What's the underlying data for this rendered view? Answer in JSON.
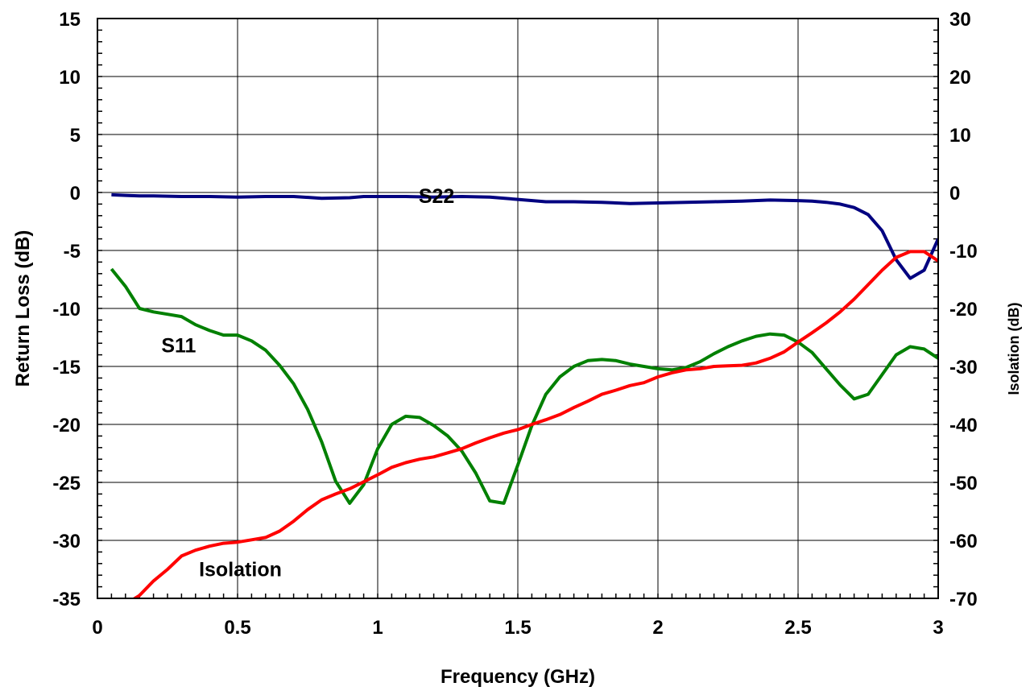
{
  "chart_data": {
    "type": "line",
    "title": "",
    "xlabel": "Frequency (GHz)",
    "ylabel": "Return Loss (dB)",
    "y2label": "Isolation (dB)",
    "xlim": [
      0,
      3
    ],
    "ylim": [
      -35,
      15
    ],
    "y2lim": [
      -70,
      30
    ],
    "xticks": [
      "0",
      "0.5",
      "1",
      "1.5",
      "2",
      "2.5",
      "3"
    ],
    "yticks": [
      "15",
      "10",
      "5",
      "0",
      "-5",
      "-10",
      "-15",
      "-20",
      "-25",
      "-30",
      "-35"
    ],
    "y2ticks": [
      "30",
      "20",
      "10",
      "0",
      "-10",
      "-20",
      "-30",
      "-40",
      "-50",
      "-60",
      "-70"
    ],
    "grid": true,
    "series": [
      {
        "name": "S22",
        "axis": "left",
        "color": "#000080",
        "x": [
          0.05,
          0.1,
          0.15,
          0.2,
          0.3,
          0.4,
          0.5,
          0.6,
          0.7,
          0.8,
          0.9,
          0.95,
          1.0,
          1.1,
          1.2,
          1.3,
          1.4,
          1.5,
          1.6,
          1.7,
          1.8,
          1.9,
          2.0,
          2.1,
          2.2,
          2.3,
          2.4,
          2.5,
          2.55,
          2.6,
          2.65,
          2.7,
          2.75,
          2.8,
          2.85,
          2.9,
          2.95,
          3.0
        ],
        "y": [
          -0.2,
          -0.25,
          -0.3,
          -0.3,
          -0.35,
          -0.35,
          -0.4,
          -0.35,
          -0.35,
          -0.5,
          -0.45,
          -0.35,
          -0.35,
          -0.35,
          -0.4,
          -0.35,
          -0.4,
          -0.6,
          -0.8,
          -0.8,
          -0.85,
          -0.95,
          -0.9,
          -0.85,
          -0.8,
          -0.75,
          -0.65,
          -0.7,
          -0.75,
          -0.85,
          -1.0,
          -1.3,
          -1.9,
          -3.3,
          -5.8,
          -7.4,
          -6.7,
          -4.0
        ]
      },
      {
        "name": "S11",
        "axis": "left",
        "color": "#008000",
        "x": [
          0.05,
          0.1,
          0.15,
          0.2,
          0.25,
          0.3,
          0.35,
          0.4,
          0.45,
          0.5,
          0.55,
          0.6,
          0.65,
          0.7,
          0.75,
          0.8,
          0.85,
          0.9,
          0.95,
          1.0,
          1.05,
          1.1,
          1.15,
          1.2,
          1.25,
          1.3,
          1.35,
          1.4,
          1.45,
          1.5,
          1.55,
          1.6,
          1.65,
          1.7,
          1.75,
          1.8,
          1.85,
          1.9,
          1.95,
          2.0,
          2.05,
          2.1,
          2.15,
          2.2,
          2.25,
          2.3,
          2.35,
          2.4,
          2.45,
          2.5,
          2.55,
          2.6,
          2.65,
          2.7,
          2.75,
          2.8,
          2.85,
          2.9,
          2.95,
          3.0
        ],
        "y": [
          -6.6,
          -8.1,
          -10.0,
          -10.3,
          -10.5,
          -10.7,
          -11.4,
          -11.9,
          -12.3,
          -12.3,
          -12.8,
          -13.6,
          -14.9,
          -16.5,
          -18.7,
          -21.5,
          -24.9,
          -26.8,
          -25.2,
          -22.1,
          -20.0,
          -19.3,
          -19.4,
          -20.1,
          -21.0,
          -22.3,
          -24.2,
          -26.6,
          -26.8,
          -23.5,
          -20.1,
          -17.4,
          -15.9,
          -15.0,
          -14.5,
          -14.4,
          -14.5,
          -14.8,
          -15.0,
          -15.2,
          -15.3,
          -15.1,
          -14.6,
          -13.9,
          -13.3,
          -12.8,
          -12.4,
          -12.2,
          -12.3,
          -12.9,
          -13.8,
          -15.2,
          -16.6,
          -17.8,
          -17.4,
          -15.7,
          -14.0,
          -13.3,
          -13.5,
          -14.3
        ]
      },
      {
        "name": "Isolation",
        "axis": "right",
        "color": "#ff0000",
        "x": [
          0.05,
          0.1,
          0.15,
          0.2,
          0.25,
          0.3,
          0.35,
          0.4,
          0.45,
          0.5,
          0.55,
          0.6,
          0.65,
          0.7,
          0.75,
          0.8,
          0.85,
          0.9,
          0.95,
          1.0,
          1.05,
          1.1,
          1.15,
          1.2,
          1.25,
          1.3,
          1.35,
          1.4,
          1.45,
          1.5,
          1.55,
          1.6,
          1.65,
          1.7,
          1.75,
          1.8,
          1.85,
          1.9,
          1.95,
          2.0,
          2.05,
          2.1,
          2.15,
          2.2,
          2.25,
          2.3,
          2.35,
          2.4,
          2.45,
          2.5,
          2.55,
          2.6,
          2.65,
          2.7,
          2.75,
          2.8,
          2.85,
          2.9,
          2.95,
          3.0
        ],
        "y": [
          -71.8,
          -71.0,
          -69.5,
          -67.0,
          -65.0,
          -62.7,
          -61.7,
          -61.0,
          -60.5,
          -60.3,
          -59.9,
          -59.5,
          -58.4,
          -56.7,
          -54.7,
          -53.0,
          -52.0,
          -51.1,
          -49.9,
          -48.7,
          -47.4,
          -46.6,
          -46.0,
          -45.6,
          -44.9,
          -44.2,
          -43.2,
          -42.3,
          -41.5,
          -40.9,
          -40.0,
          -39.2,
          -38.3,
          -37.1,
          -36.0,
          -34.8,
          -34.1,
          -33.3,
          -32.8,
          -31.8,
          -31.1,
          -30.6,
          -30.4,
          -30.0,
          -29.9,
          -29.8,
          -29.4,
          -28.6,
          -27.5,
          -25.8,
          -24.2,
          -22.5,
          -20.6,
          -18.4,
          -15.9,
          -13.4,
          -11.2,
          -10.2,
          -10.2,
          -11.8
        ]
      }
    ],
    "annotations": [
      {
        "text": "S22",
        "x": 1.21,
        "y": -0.9
      },
      {
        "text": "S11",
        "x": 0.29,
        "y": -13.8
      },
      {
        "text": "Isolation",
        "x": 0.51,
        "y": -33.1
      }
    ]
  }
}
